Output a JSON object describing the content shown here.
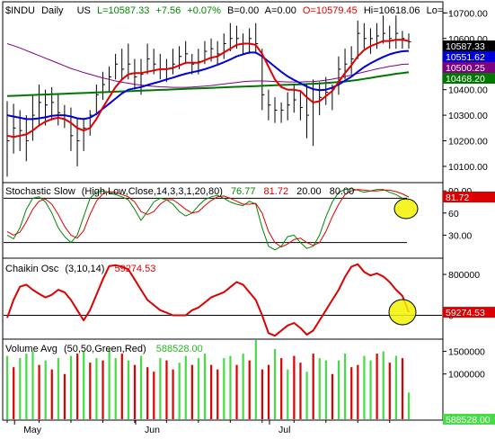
{
  "header": {
    "symbol": "$INDU",
    "period": "Daily",
    "market": "US",
    "last": "L=10587.33",
    "change": "+7.56",
    "pct": "+0.07%",
    "bid": "B=0.00",
    "ask": "A=0.00",
    "open": "O=10579.45",
    "high": "Hi=10618.06",
    "low": "Lo=..."
  },
  "colors": {
    "background": "#ffffff",
    "axis": "#000000",
    "price_bar": "#000000",
    "ma_red": "#e00000",
    "ma_blue": "#0000dd",
    "ma_green": "#007700",
    "ma_purple": "#800080",
    "stoch_k": "#008800",
    "stoch_d": "#dd0000",
    "chaikin": "#dd0000",
    "vol_up": "#44dd44",
    "vol_down": "#dd0000",
    "highlight": "#f2f200"
  },
  "chart_data": [
    {
      "type": "ohlc",
      "panel": "price",
      "y_ticks": [
        "10700.00",
        "10600.00",
        "10500.00",
        "10400.00",
        "10300.00",
        "10200.00",
        "10100.00"
      ],
      "ylim": [
        10040,
        10740
      ],
      "x_labels": [
        "May",
        "Jun",
        "Jul"
      ],
      "price_high": [
        10355,
        10345,
        10320,
        10300,
        10380,
        10420,
        10400,
        10410,
        10380,
        10340,
        10330,
        10285,
        10290,
        10320,
        10420,
        10470,
        10490,
        10540,
        10560,
        10580,
        10520,
        10520,
        10580,
        10560,
        10540,
        10520,
        10560,
        10570,
        10590,
        10540,
        10560,
        10590,
        10600,
        10590,
        10620,
        10660,
        10650,
        10620,
        10640,
        10660,
        10560,
        10400,
        10370,
        10350,
        10390,
        10420,
        10390,
        10420,
        10440,
        10430,
        10450,
        10420,
        10530,
        10560,
        10570,
        10670,
        10660,
        10640,
        10660,
        10690,
        10650,
        10690,
        10630,
        10620
      ],
      "price_low": [
        10060,
        10150,
        10160,
        10120,
        10200,
        10260,
        10260,
        10280,
        10260,
        10250,
        10160,
        10100,
        10160,
        10220,
        10300,
        10360,
        10390,
        10440,
        10440,
        10440,
        10400,
        10380,
        10460,
        10460,
        10440,
        10430,
        10460,
        10480,
        10500,
        10460,
        10460,
        10500,
        10510,
        10500,
        10520,
        10550,
        10560,
        10540,
        10540,
        10540,
        10320,
        10280,
        10270,
        10270,
        10280,
        10310,
        10280,
        10210,
        10180,
        10300,
        10340,
        10320,
        10380,
        10440,
        10460,
        10520,
        10560,
        10540,
        10560,
        10580,
        10560,
        10560,
        10560,
        10560
      ],
      "price_close": [
        10200,
        10250,
        10240,
        10200,
        10300,
        10350,
        10340,
        10350,
        10310,
        10300,
        10220,
        10200,
        10250,
        10300,
        10380,
        10420,
        10450,
        10500,
        10480,
        10500,
        10450,
        10460,
        10520,
        10500,
        10480,
        10480,
        10500,
        10530,
        10540,
        10500,
        10510,
        10550,
        10560,
        10540,
        10580,
        10600,
        10600,
        10580,
        10600,
        10580,
        10380,
        10340,
        10320,
        10320,
        10340,
        10360,
        10330,
        10300,
        10350,
        10370,
        10390,
        10400,
        10480,
        10500,
        10520,
        10620,
        10600,
        10600,
        10610,
        10620,
        10600,
        10620,
        10600,
        10587.33
      ],
      "ma_red": [
        10220,
        10215,
        10220,
        10225,
        10240,
        10260,
        10275,
        10285,
        10290,
        10285,
        10270,
        10250,
        10240,
        10250,
        10285,
        10330,
        10370,
        10410,
        10440,
        10460,
        10465,
        10465,
        10470,
        10475,
        10480,
        10480,
        10485,
        10495,
        10505,
        10505,
        10505,
        10515,
        10525,
        10530,
        10545,
        10560,
        10575,
        10580,
        10580,
        10575,
        10540,
        10490,
        10440,
        10410,
        10400,
        10400,
        10395,
        10370,
        10350,
        10355,
        10375,
        10395,
        10430,
        10465,
        10495,
        10530,
        10555,
        10570,
        10580,
        10590,
        10590,
        10595,
        10595,
        10590
      ],
      "ma_blue": [
        10300,
        10295,
        10290,
        10285,
        10285,
        10288,
        10292,
        10298,
        10300,
        10300,
        10295,
        10288,
        10285,
        10290,
        10305,
        10325,
        10345,
        10365,
        10385,
        10400,
        10405,
        10410,
        10418,
        10425,
        10432,
        10440,
        10447,
        10455,
        10462,
        10468,
        10473,
        10480,
        10488,
        10497,
        10507,
        10518,
        10530,
        10538,
        10545,
        10545,
        10530,
        10510,
        10490,
        10470,
        10452,
        10438,
        10425,
        10412,
        10402,
        10398,
        10400,
        10408,
        10420,
        10435,
        10450,
        10470,
        10488,
        10503,
        10516,
        10528,
        10538,
        10545,
        10550,
        10551.62
      ],
      "ma_purple": [
        10580,
        10572,
        10563,
        10553,
        10543,
        10533,
        10523,
        10513,
        10503,
        10493,
        10483,
        10475,
        10467,
        10460,
        10453,
        10446,
        10440,
        10434,
        10429,
        10425,
        10421,
        10418,
        10415,
        10413,
        10411,
        10410,
        10409,
        10409,
        10409,
        10410,
        10412,
        10414,
        10416,
        10419,
        10422,
        10425,
        10428,
        10431,
        10433,
        10434,
        10434,
        10433,
        10432,
        10431,
        10430,
        10430,
        10430,
        10431,
        10432,
        10434,
        10437,
        10441,
        10446,
        10451,
        10457,
        10463,
        10469,
        10475,
        10481,
        10486,
        10491,
        10495,
        10499,
        10500.25
      ],
      "ma_green": [
        10375,
        10376,
        10377,
        10378,
        10379,
        10380,
        10381,
        10382,
        10383,
        10384,
        10385,
        10386,
        10387,
        10388,
        10389,
        10390,
        10391,
        10392,
        10393,
        10394,
        10395,
        10396,
        10397,
        10398,
        10399,
        10400,
        10401,
        10402,
        10403,
        10404,
        10405,
        10406,
        10407,
        10408,
        10409,
        10410,
        10411,
        10412,
        10413,
        10414,
        10415,
        10416,
        10417,
        10418,
        10419,
        10420,
        10421,
        10422,
        10423,
        10424,
        10426,
        10428,
        10430,
        10432,
        10435,
        10438,
        10442,
        10446,
        10450,
        10454,
        10458,
        10462,
        10465,
        10468
      ],
      "last_tags": [
        {
          "label": "10587.33",
          "value": 10587.33,
          "bg": "#000000",
          "fg": "#ffffff"
        },
        {
          "label": "10551.62",
          "value": 10551.62,
          "bg": "#0000dd",
          "fg": "#ffffff"
        },
        {
          "label": "10500.25",
          "value": 10500.25,
          "bg": "#800080",
          "fg": "#ffffff"
        },
        {
          "label": "10468.20",
          "value": 10468.2,
          "bg": "#007700",
          "fg": "#ffffff"
        }
      ]
    },
    {
      "type": "line",
      "panel": "stochastic",
      "title": "Stochastic Slow",
      "params": "(High,Low,Close,14,3,3,1,20,80)",
      "k_label": "76.77",
      "d_label": "81.72",
      "lo_label": "20.00",
      "hi_label": "80.00",
      "ylim": [
        0,
        100
      ],
      "y_ticks": [
        "90.00",
        "60",
        "30.00"
      ],
      "h_lines": [
        80,
        20
      ],
      "k_values": [
        30,
        25,
        40,
        65,
        80,
        82,
        75,
        60,
        40,
        28,
        20,
        30,
        55,
        80,
        88,
        90,
        88,
        85,
        82,
        78,
        65,
        50,
        62,
        75,
        80,
        78,
        72,
        62,
        56,
        60,
        70,
        78,
        82,
        84,
        80,
        75,
        72,
        70,
        76,
        72,
        40,
        15,
        10,
        15,
        28,
        30,
        20,
        12,
        15,
        30,
        55,
        75,
        88,
        92,
        93,
        91,
        88,
        90,
        92,
        92,
        88,
        85,
        80,
        76.77
      ],
      "d_values": [
        35,
        30,
        34,
        48,
        65,
        76,
        79,
        72,
        58,
        42,
        30,
        26,
        36,
        58,
        76,
        86,
        89,
        88,
        85,
        82,
        75,
        62,
        58,
        62,
        72,
        78,
        78,
        72,
        65,
        60,
        62,
        70,
        77,
        82,
        83,
        80,
        76,
        72,
        72,
        73,
        60,
        35,
        20,
        14,
        18,
        24,
        26,
        20,
        16,
        20,
        35,
        55,
        72,
        85,
        90,
        92,
        91,
        90,
        90,
        91,
        91,
        89,
        86,
        81.72
      ],
      "last_tag": {
        "label": "81.72",
        "value": 81.72,
        "bg": "#dd0000",
        "fg": "#ffffff"
      }
    },
    {
      "type": "line",
      "panel": "chaikin",
      "title": "Chaikin Osc",
      "params": "(3,10,14)",
      "value_label": "59274.53",
      "ylim": [
        -450000,
        1100000
      ],
      "y_ticks": [
        "800000",
        "0"
      ],
      "h_lines": [
        0
      ],
      "values": [
        -50000,
        300000,
        560000,
        600000,
        500000,
        420000,
        350000,
        400000,
        500000,
        450000,
        300000,
        100000,
        -100000,
        100000,
        400000,
        700000,
        960000,
        980000,
        950000,
        900000,
        700000,
        500000,
        300000,
        200000,
        100000,
        50000,
        0,
        0,
        0,
        100000,
        150000,
        250000,
        350000,
        400000,
        450000,
        550000,
        650000,
        600000,
        450000,
        300000,
        0,
        -350000,
        -400000,
        -300000,
        -200000,
        -150000,
        -250000,
        -380000,
        -300000,
        -100000,
        100000,
        300000,
        500000,
        750000,
        950000,
        1000000,
        850000,
        780000,
        820000,
        760000,
        650000,
        500000,
        380000,
        59274.53
      ],
      "last_tag": {
        "label": "59274.53",
        "value": 59274.53,
        "bg": "#dd0000",
        "fg": "#ffffff"
      }
    },
    {
      "type": "bar",
      "panel": "volume",
      "title": "Volume Avg",
      "params": "(50,50,Green,Red)",
      "value_label": "588528.00",
      "ylim": [
        0,
        1750000
      ],
      "y_ticks": [
        "1500000",
        "1000000"
      ],
      "values": [
        1400000,
        1150000,
        1350000,
        1450000,
        1500000,
        1200000,
        1300000,
        1100000,
        1350000,
        1000000,
        1400000,
        1450000,
        1500000,
        1250000,
        1350000,
        1300000,
        1550000,
        1350000,
        1450000,
        1300000,
        1200000,
        1400000,
        1150000,
        1050000,
        1350000,
        1300000,
        1100000,
        1250000,
        1400000,
        1200000,
        1350000,
        1450000,
        1200000,
        1100000,
        1350000,
        1400000,
        1200000,
        1450000,
        1300000,
        1750000,
        1100000,
        1200000,
        1550000,
        1350000,
        1100000,
        1400000,
        1250000,
        1050000,
        1450000,
        1350000,
        1300000,
        1000000,
        1300000,
        1450000,
        1150000,
        1200000,
        1400000,
        1300000,
        1450000,
        1500000,
        1250000,
        1400000,
        1350000,
        588528
      ],
      "up": [
        true,
        false,
        true,
        true,
        true,
        false,
        true,
        false,
        true,
        false,
        true,
        false,
        true,
        false,
        true,
        false,
        true,
        true,
        false,
        true,
        false,
        true,
        false,
        false,
        true,
        false,
        false,
        true,
        true,
        false,
        true,
        true,
        false,
        false,
        true,
        true,
        false,
        true,
        false,
        true,
        false,
        false,
        true,
        false,
        true,
        false,
        false,
        true,
        false,
        true,
        true,
        false,
        true,
        true,
        false,
        false,
        true,
        true,
        false,
        true,
        false,
        true,
        false,
        true
      ],
      "last_tag": {
        "label": "588528.00",
        "value": 588528,
        "bg": "#44dd44",
        "fg": "#ffffff"
      }
    }
  ]
}
